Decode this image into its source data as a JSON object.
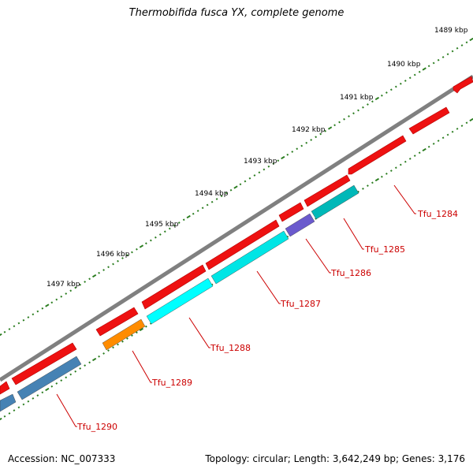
{
  "title": "Thermobifida fusca YX, complete genome",
  "footer": {
    "accession": "Accession: NC_007333",
    "summary": "Topology: circular; Length: 3,642,249 bp; Genes: 3,176"
  },
  "colors": {
    "backbone": "#7f7f7f",
    "tick": "#2a7d1f",
    "forward_gene": "#ee1111",
    "label_line": "#cc0000",
    "label_text": "#cc0000"
  },
  "kbp_labels": [
    "1489 kbp",
    "1490 kbp",
    "1491 kbp",
    "1492 kbp",
    "1493 kbp",
    "1494 kbp",
    "1495 kbp",
    "1496 kbp",
    "1497 kbp"
  ],
  "genes": [
    {
      "name": "Tfu_1284",
      "color": "#00b8b8"
    },
    {
      "name": "Tfu_1285",
      "color": "#00c8c8"
    },
    {
      "name": "Tfu_1286",
      "color": "#6a5acd"
    },
    {
      "name": "Tfu_1287",
      "color": "#00e5e5"
    },
    {
      "name": "Tfu_1288",
      "color": "#00ffff"
    },
    {
      "name": "Tfu_1289",
      "color": "#ff8c00"
    },
    {
      "name": "Tfu_1290",
      "color": "#4682b4"
    }
  ]
}
